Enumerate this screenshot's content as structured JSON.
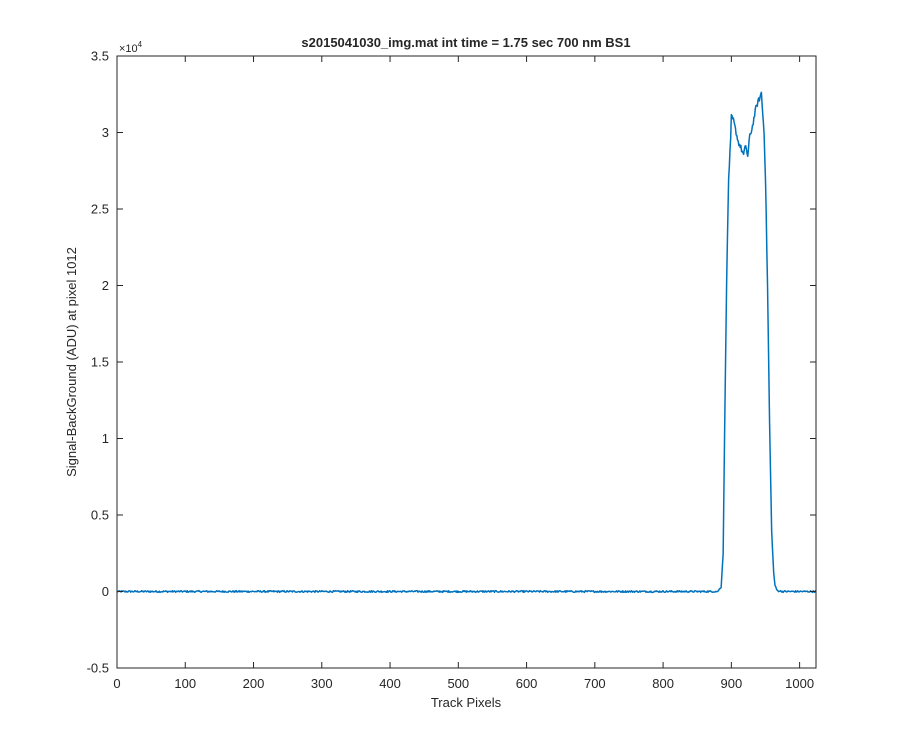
{
  "chart_data": {
    "type": "line",
    "title": "s2015041030_img.mat int time = 1.75 sec  700 nm BS1",
    "xlabel": "Track Pixels",
    "ylabel": "Signal-BackGround (ADU) at pixel 1012",
    "xlim": [
      0,
      1024
    ],
    "ylim": [
      -5000,
      35000
    ],
    "y_exponent_label": "×10",
    "y_exponent_power": "4",
    "xticks": [
      0,
      100,
      200,
      300,
      400,
      500,
      600,
      700,
      800,
      900,
      1000
    ],
    "xtick_labels": [
      "0",
      "100",
      "200",
      "300",
      "400",
      "500",
      "600",
      "700",
      "800",
      "900",
      "1000"
    ],
    "yticks": [
      -5000,
      0,
      5000,
      10000,
      15000,
      20000,
      25000,
      30000,
      35000
    ],
    "ytick_labels": [
      "-0.5",
      "0",
      "0.5",
      "1",
      "1.5",
      "2",
      "2.5",
      "3",
      "3.5"
    ],
    "grid": false,
    "box": true,
    "series": [
      {
        "color": "#0072bd",
        "x": [
          0,
          100,
          200,
          300,
          400,
          500,
          600,
          700,
          800,
          880,
          885,
          888,
          890,
          893,
          896,
          899,
          900,
          903,
          906,
          910,
          914,
          918,
          921,
          924,
          927,
          930,
          933,
          936,
          939,
          942,
          944,
          946,
          948,
          950,
          953,
          956,
          959,
          962,
          964,
          966,
          968,
          975,
          990,
          1010,
          1024
        ],
        "y": [
          0,
          0,
          0,
          0,
          0,
          0,
          0,
          0,
          0,
          0,
          300,
          2500,
          10000,
          20000,
          27000,
          29500,
          31000,
          30800,
          30200,
          29400,
          29000,
          28500,
          29200,
          28400,
          29800,
          30200,
          30900,
          31600,
          32000,
          32300,
          32600,
          31200,
          30000,
          27000,
          20000,
          11000,
          4000,
          1200,
          400,
          150,
          50,
          0,
          0,
          0,
          0
        ]
      }
    ]
  }
}
